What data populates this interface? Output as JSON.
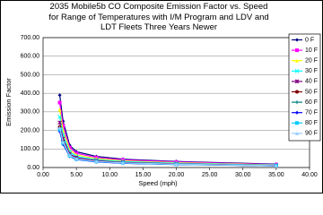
{
  "chart_data": {
    "type": "line",
    "title": "2035 Mobile5b CO Composite Emission Factor vs. Speed for Range of Temperatures with I/M Program and LDV and LDT Fleets Three Years Newer",
    "x_label": "Speed (mph)",
    "y_label": "Emission Factor",
    "x": [
      2.5,
      3,
      4,
      5,
      8,
      12,
      20,
      35
    ],
    "series": [
      {
        "name": "0 F",
        "color": "#000080",
        "values": [
          390,
          250,
          120,
          85,
          60,
          45,
          33,
          18
        ]
      },
      {
        "name": "10 F",
        "color": "#ff00ff",
        "values": [
          350,
          225,
          108,
          77,
          54,
          41,
          30,
          16
        ]
      },
      {
        "name": "20 F",
        "color": "#ffff00",
        "values": [
          312,
          200,
          96,
          68,
          48,
          36,
          26,
          14
        ]
      },
      {
        "name": "30 F",
        "color": "#00ffff",
        "values": [
          273,
          175,
          84,
          60,
          42,
          32,
          23,
          13
        ]
      },
      {
        "name": "40 F",
        "color": "#800080",
        "values": [
          242,
          155,
          74,
          53,
          37,
          28,
          20,
          11
        ]
      },
      {
        "name": "50 F",
        "color": "#800000",
        "values": [
          218,
          140,
          67,
          48,
          34,
          25,
          18,
          10
        ]
      },
      {
        "name": "60 F",
        "color": "#008080",
        "values": [
          203,
          130,
          62,
          44,
          31,
          23,
          17,
          9
        ]
      },
      {
        "name": "70 F",
        "color": "#0000ff",
        "values": [
          195,
          125,
          60,
          43,
          30,
          23,
          16,
          9
        ]
      },
      {
        "name": "80 F",
        "color": "#00ccff",
        "values": [
          205,
          132,
          63,
          45,
          32,
          24,
          17,
          10
        ]
      },
      {
        "name": "90 F",
        "color": "#99ccff",
        "values": [
          215,
          138,
          66,
          47,
          33,
          25,
          18,
          10
        ]
      }
    ],
    "xlim": [
      0,
      40
    ],
    "xticks": [
      {
        "value": 0,
        "label": "0.00"
      },
      {
        "value": 5,
        "label": "5.00"
      },
      {
        "value": 10,
        "label": "10.00"
      },
      {
        "value": 15,
        "label": "15.00"
      },
      {
        "value": 20,
        "label": "20.00"
      },
      {
        "value": 25,
        "label": "25.00"
      },
      {
        "value": 30,
        "label": "30.00"
      },
      {
        "value": 35,
        "label": "35.00"
      },
      {
        "value": 40,
        "label": "40.00"
      }
    ],
    "ylim": [
      0,
      700
    ],
    "yticks": [
      {
        "value": 0,
        "label": "0.00"
      },
      {
        "value": 100,
        "label": "100.00"
      },
      {
        "value": 200,
        "label": "200.00"
      },
      {
        "value": 300,
        "label": "300.00"
      },
      {
        "value": 400,
        "label": "400.00"
      },
      {
        "value": 500,
        "label": "500.00"
      },
      {
        "value": 600,
        "label": "600.00"
      },
      {
        "value": 700,
        "label": "700.00"
      }
    ],
    "grid": true
  }
}
